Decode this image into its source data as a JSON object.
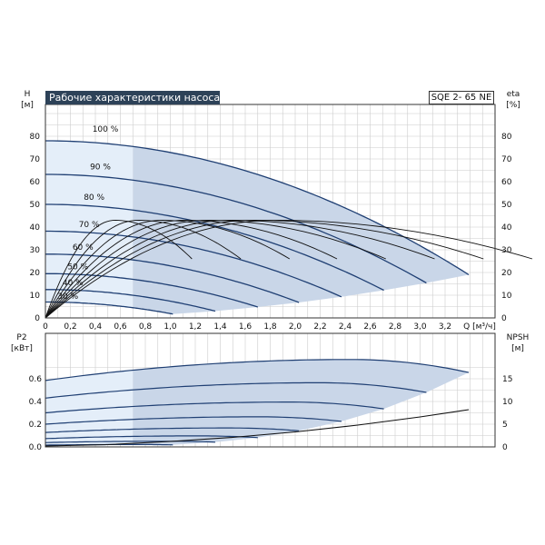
{
  "header": {
    "title": "Рабочие характеристики насоса",
    "model": "SQE 2- 65 NE"
  },
  "colors": {
    "fill_band": "#c9d6e8",
    "fill_band_light": "#e4eef9",
    "curve": "#1f3f73",
    "efficiency_curve": "#111111",
    "grid": "#cccccc",
    "title_bg": "#2d4258"
  },
  "chart_data": [
    {
      "type": "line",
      "panel": "head",
      "left_axis": {
        "label": "H",
        "unit": "[м]",
        "ylim": [
          0,
          80
        ],
        "ticks": [
          "0",
          "10",
          "20",
          "30",
          "40",
          "50",
          "60",
          "70",
          "80"
        ]
      },
      "right_axis": {
        "label": "eta",
        "unit": "[%]",
        "ylim": [
          0,
          80
        ],
        "ticks": [
          "0",
          "10",
          "20",
          "30",
          "40",
          "50",
          "60",
          "70",
          "80"
        ]
      },
      "x_axis": {
        "label": "Q [м³/ч]",
        "xlim": [
          0,
          3.6
        ],
        "ticks": [
          "0",
          "0,2",
          "0,4",
          "0,6",
          "0,8",
          "1,0",
          "1,2",
          "1,4",
          "1,6",
          "1,8",
          "2,0",
          "2,2",
          "2,4",
          "2,6",
          "2,8",
          "3,0",
          "3,2"
        ]
      },
      "grid": true,
      "series": [
        {
          "name": "100 %",
          "qmax": 3.39,
          "h0": 78,
          "hend": 19
        },
        {
          "name": "90 %",
          "qmax": 3.05,
          "h0": 63.2,
          "hend": 15.4
        },
        {
          "name": "80 %",
          "qmax": 2.71,
          "h0": 50,
          "hend": 12.2
        },
        {
          "name": "70 %",
          "qmax": 2.37,
          "h0": 38.2,
          "hend": 9.3
        },
        {
          "name": "60 %",
          "qmax": 2.03,
          "h0": 28.1,
          "hend": 6.8
        },
        {
          "name": "50 %",
          "qmax": 1.7,
          "h0": 19.5,
          "hend": 4.8
        },
        {
          "name": "40 %",
          "qmax": 1.36,
          "h0": 12.5,
          "hend": 3
        },
        {
          "name": "30 %",
          "qmax": 1.02,
          "h0": 7,
          "hend": 1.7
        }
      ],
      "efficiency": {
        "peak": 43,
        "peak_fraction": 0.545,
        "end": 26
      }
    },
    {
      "type": "line",
      "panel": "power_npsh",
      "left_axis": {
        "label": "P2",
        "unit": "[кВт]",
        "ylim": [
          0,
          0.7
        ],
        "ticks": [
          "0.0",
          "0.2",
          "0.4",
          "0.6"
        ]
      },
      "right_axis": {
        "label": "NPSH",
        "unit": "[м]",
        "ylim": [
          0,
          20
        ],
        "ticks": [
          "0",
          "5",
          "10",
          "15"
        ]
      },
      "grid": true,
      "power_series": [
        {
          "speed": "100 %",
          "p0": 0.585,
          "ppeak": 0.77,
          "pend": 0.655
        },
        {
          "speed": "90 %",
          "p0": 0.43,
          "ppeak": 0.565,
          "pend": 0.48
        },
        {
          "speed": "80 %",
          "p0": 0.3,
          "ppeak": 0.395,
          "pend": 0.335
        },
        {
          "speed": "70 %",
          "p0": 0.2,
          "ppeak": 0.265,
          "pend": 0.225
        },
        {
          "speed": "60 %",
          "p0": 0.127,
          "ppeak": 0.167,
          "pend": 0.142
        },
        {
          "speed": "50 %",
          "p0": 0.073,
          "ppeak": 0.097,
          "pend": 0.082
        },
        {
          "speed": "40 %",
          "p0": 0.038,
          "ppeak": 0.05,
          "pend": 0.042
        },
        {
          "speed": "30 %",
          "p0": 0.016,
          "ppeak": 0.021,
          "pend": 0.018
        }
      ],
      "npsh": {
        "q": [
          0,
          0.5,
          1,
          1.5,
          2,
          2.5,
          3,
          3.39
        ],
        "values": [
          0.2,
          0.5,
          1.2,
          2.1,
          3.3,
          4.8,
          6.6,
          8.2
        ]
      }
    }
  ]
}
